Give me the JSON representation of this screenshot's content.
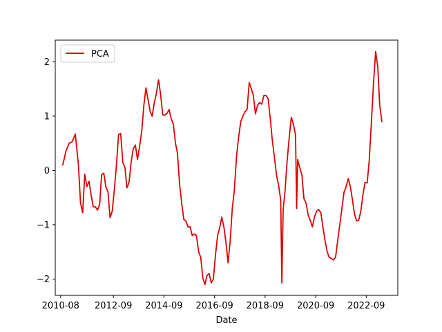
{
  "chart_data": {
    "type": "line",
    "title": "",
    "xlabel": "Date",
    "ylabel": "",
    "x_axis": {
      "type": "date",
      "range": [
        "2010-05-15",
        "2023-12-01"
      ],
      "ticks": [
        {
          "value": "2010-08-01",
          "label": "2010-08"
        },
        {
          "value": "2012-09-01",
          "label": "2012-09"
        },
        {
          "value": "2014-09-01",
          "label": "2014-09"
        },
        {
          "value": "2016-09-01",
          "label": "2016-09"
        },
        {
          "value": "2018-09-01",
          "label": "2018-09"
        },
        {
          "value": "2020-09-01",
          "label": "2020-09"
        },
        {
          "value": "2022-09-01",
          "label": "2022-09"
        }
      ]
    },
    "y_axis": {
      "range": [
        -2.3,
        2.4
      ],
      "ticks": [
        {
          "value": -2,
          "label": "−2"
        },
        {
          "value": -1,
          "label": "−1"
        },
        {
          "value": 0,
          "label": "0"
        },
        {
          "value": 1,
          "label": "1"
        },
        {
          "value": 2,
          "label": "2"
        }
      ]
    },
    "grid": false,
    "legend": {
      "position": "top-left",
      "entries": [
        "PCA"
      ]
    },
    "series": [
      {
        "name": "PCA",
        "color": "#dd0000",
        "points": [
          [
            "2010-09-01",
            0.1
          ],
          [
            "2010-10-15",
            0.35
          ],
          [
            "2010-12-01",
            0.5
          ],
          [
            "2011-01-15",
            0.53
          ],
          [
            "2011-03-01",
            0.67
          ],
          [
            "2011-04-15",
            0.1
          ],
          [
            "2011-05-15",
            -0.6
          ],
          [
            "2011-06-15",
            -0.78
          ],
          [
            "2011-07-15",
            -0.07
          ],
          [
            "2011-08-15",
            -0.3
          ],
          [
            "2011-09-15",
            -0.2
          ],
          [
            "2011-10-15",
            -0.45
          ],
          [
            "2011-11-15",
            -0.67
          ],
          [
            "2011-12-15",
            -0.67
          ],
          [
            "2012-01-15",
            -0.73
          ],
          [
            "2012-02-15",
            -0.63
          ],
          [
            "2012-03-15",
            -0.08
          ],
          [
            "2012-04-15",
            -0.05
          ],
          [
            "2012-05-15",
            -0.3
          ],
          [
            "2012-06-15",
            -0.4
          ],
          [
            "2012-07-15",
            -0.87
          ],
          [
            "2012-08-15",
            -0.75
          ],
          [
            "2012-09-15",
            -0.35
          ],
          [
            "2012-10-15",
            0.1
          ],
          [
            "2012-11-15",
            0.66
          ],
          [
            "2012-12-15",
            0.68
          ],
          [
            "2013-01-15",
            0.15
          ],
          [
            "2013-02-15",
            0.05
          ],
          [
            "2013-03-15",
            -0.32
          ],
          [
            "2013-04-15",
            -0.22
          ],
          [
            "2013-05-15",
            0.15
          ],
          [
            "2013-06-15",
            0.4
          ],
          [
            "2013-07-15",
            0.47
          ],
          [
            "2013-08-15",
            0.2
          ],
          [
            "2013-09-15",
            0.45
          ],
          [
            "2013-10-15",
            0.72
          ],
          [
            "2013-11-15",
            1.2
          ],
          [
            "2013-12-15",
            1.52
          ],
          [
            "2014-01-15",
            1.3
          ],
          [
            "2014-02-15",
            1.08
          ],
          [
            "2014-03-15",
            1.0
          ],
          [
            "2014-04-15",
            1.25
          ],
          [
            "2014-05-15",
            1.42
          ],
          [
            "2014-06-15",
            1.67
          ],
          [
            "2014-07-15",
            1.4
          ],
          [
            "2014-08-15",
            1.02
          ],
          [
            "2014-09-15",
            1.02
          ],
          [
            "2014-10-15",
            1.05
          ],
          [
            "2014-11-15",
            1.12
          ],
          [
            "2014-12-15",
            0.95
          ],
          [
            "2015-01-15",
            0.85
          ],
          [
            "2015-02-15",
            0.5
          ],
          [
            "2015-03-15",
            0.32
          ],
          [
            "2015-04-15",
            -0.25
          ],
          [
            "2015-05-15",
            -0.6
          ],
          [
            "2015-06-15",
            -0.9
          ],
          [
            "2015-07-15",
            -0.93
          ],
          [
            "2015-08-15",
            -1.04
          ],
          [
            "2015-09-15",
            -1.04
          ],
          [
            "2015-10-15",
            -1.2
          ],
          [
            "2015-11-15",
            -1.17
          ],
          [
            "2015-12-15",
            -1.2
          ],
          [
            "2016-01-15",
            -1.5
          ],
          [
            "2016-02-15",
            -1.6
          ],
          [
            "2016-03-15",
            -1.98
          ],
          [
            "2016-04-15",
            -2.1
          ],
          [
            "2016-05-15",
            -1.93
          ],
          [
            "2016-06-15",
            -1.9
          ],
          [
            "2016-07-15",
            -2.07
          ],
          [
            "2016-08-15",
            -2.0
          ],
          [
            "2016-09-15",
            -1.55
          ],
          [
            "2016-10-15",
            -1.2
          ],
          [
            "2016-11-15",
            -1.05
          ],
          [
            "2016-12-15",
            -0.86
          ],
          [
            "2017-01-15",
            -1.05
          ],
          [
            "2017-02-15",
            -1.35
          ],
          [
            "2017-03-15",
            -1.7
          ],
          [
            "2017-04-15",
            -1.3
          ],
          [
            "2017-05-15",
            -0.7
          ],
          [
            "2017-06-15",
            -0.35
          ],
          [
            "2017-07-15",
            0.25
          ],
          [
            "2017-08-15",
            0.62
          ],
          [
            "2017-09-15",
            0.9
          ],
          [
            "2017-10-15",
            1.0
          ],
          [
            "2017-11-15",
            1.08
          ],
          [
            "2017-12-15",
            1.12
          ],
          [
            "2018-01-15",
            1.62
          ],
          [
            "2018-02-15",
            1.5
          ],
          [
            "2018-03-15",
            1.38
          ],
          [
            "2018-04-15",
            1.04
          ],
          [
            "2018-05-15",
            1.2
          ],
          [
            "2018-06-15",
            1.25
          ],
          [
            "2018-07-15",
            1.22
          ],
          [
            "2018-08-15",
            1.38
          ],
          [
            "2018-09-15",
            1.38
          ],
          [
            "2018-10-15",
            1.32
          ],
          [
            "2018-11-15",
            0.95
          ],
          [
            "2018-12-15",
            0.55
          ],
          [
            "2019-01-15",
            0.23
          ],
          [
            "2019-02-15",
            -0.1
          ],
          [
            "2019-03-15",
            -0.27
          ],
          [
            "2019-04-15",
            -0.55
          ],
          [
            "2019-05-01",
            -2.07
          ],
          [
            "2019-05-20",
            -0.72
          ],
          [
            "2019-06-15",
            -0.4
          ],
          [
            "2019-07-15",
            0.15
          ],
          [
            "2019-08-15",
            0.6
          ],
          [
            "2019-09-15",
            0.98
          ],
          [
            "2019-10-15",
            0.85
          ],
          [
            "2019-11-15",
            0.65
          ],
          [
            "2019-12-01",
            -0.7
          ],
          [
            "2019-12-15",
            0.2
          ],
          [
            "2020-01-15",
            0.05
          ],
          [
            "2020-02-15",
            -0.08
          ],
          [
            "2020-03-15",
            -0.52
          ],
          [
            "2020-04-15",
            -0.6
          ],
          [
            "2020-05-15",
            -0.82
          ],
          [
            "2020-06-15",
            -0.92
          ],
          [
            "2020-07-15",
            -1.04
          ],
          [
            "2020-08-15",
            -0.85
          ],
          [
            "2020-09-15",
            -0.75
          ],
          [
            "2020-10-15",
            -0.72
          ],
          [
            "2020-11-15",
            -0.78
          ],
          [
            "2020-12-15",
            -1.05
          ],
          [
            "2021-01-15",
            -1.3
          ],
          [
            "2021-02-15",
            -1.5
          ],
          [
            "2021-03-15",
            -1.6
          ],
          [
            "2021-04-15",
            -1.62
          ],
          [
            "2021-05-15",
            -1.65
          ],
          [
            "2021-06-15",
            -1.6
          ],
          [
            "2021-07-15",
            -1.3
          ],
          [
            "2021-08-15",
            -1.0
          ],
          [
            "2021-09-15",
            -0.7
          ],
          [
            "2021-10-15",
            -0.4
          ],
          [
            "2021-11-15",
            -0.3
          ],
          [
            "2021-12-15",
            -0.15
          ],
          [
            "2022-01-15",
            -0.3
          ],
          [
            "2022-02-15",
            -0.55
          ],
          [
            "2022-03-15",
            -0.8
          ],
          [
            "2022-04-15",
            -0.93
          ],
          [
            "2022-05-15",
            -0.92
          ],
          [
            "2022-06-15",
            -0.75
          ],
          [
            "2022-07-15",
            -0.45
          ],
          [
            "2022-08-15",
            -0.22
          ],
          [
            "2022-09-15",
            -0.23
          ],
          [
            "2022-10-15",
            0.2
          ],
          [
            "2022-11-15",
            0.9
          ],
          [
            "2022-12-15",
            1.6
          ],
          [
            "2023-01-15",
            2.19
          ],
          [
            "2023-02-15",
            1.9
          ],
          [
            "2023-03-15",
            1.2
          ],
          [
            "2023-04-15",
            0.9
          ]
        ]
      }
    ]
  }
}
